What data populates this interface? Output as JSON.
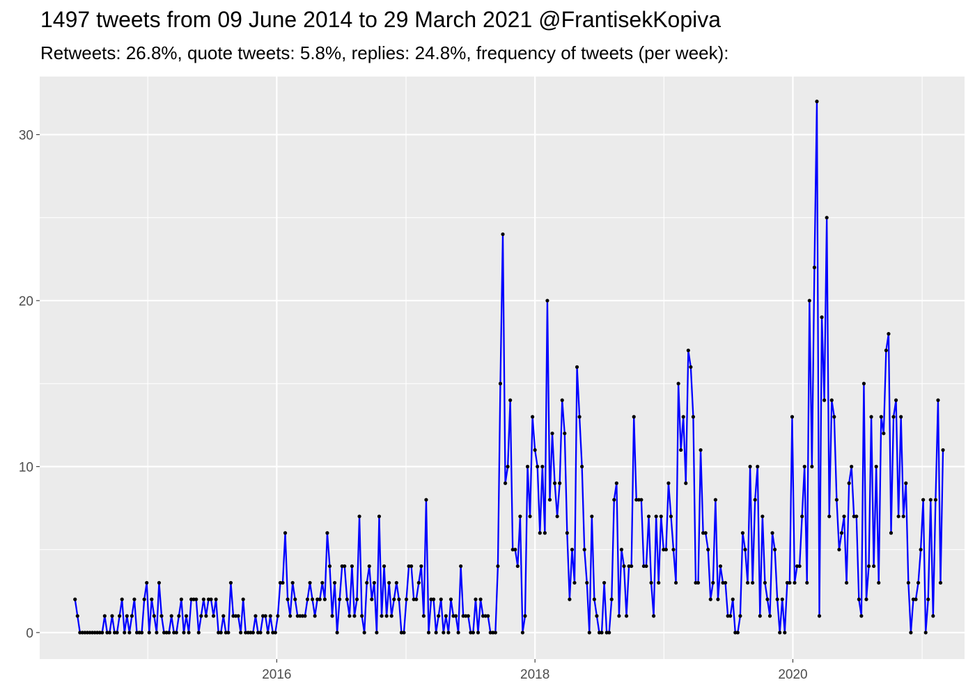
{
  "chart_data": {
    "type": "line",
    "title": "1497 tweets from 09 June 2014 to 29 March 2021 @FrantisekKopiva",
    "subtitle": "Retweets: 26.8%, quote tweets: 5.8%, replies: 24.8%, frequency of tweets (per week):",
    "xlabel": "",
    "ylabel": "",
    "x_ticks": [
      "2016",
      "2018",
      "2020"
    ],
    "y_ticks": [
      0,
      10,
      20,
      30
    ],
    "ylim": [
      -1.6,
      33.5
    ],
    "xlim": [
      "2014-03-01",
      "2021-05-01"
    ],
    "grid": true,
    "series": [
      {
        "color": "#0000ff",
        "point_color": "#000000",
        "x_start": "2014-06-09",
        "x_step_days": 7,
        "values": [
          2,
          1,
          0,
          0,
          0,
          0,
          0,
          0,
          0,
          0,
          0,
          0,
          1,
          0,
          0,
          1,
          0,
          0,
          1,
          2,
          0,
          1,
          0,
          1,
          2,
          0,
          0,
          0,
          2,
          3,
          0,
          2,
          1,
          0,
          3,
          1,
          0,
          0,
          0,
          1,
          0,
          0,
          1,
          2,
          0,
          1,
          0,
          2,
          2,
          2,
          0,
          1,
          2,
          1,
          2,
          2,
          1,
          2,
          0,
          0,
          1,
          0,
          0,
          3,
          1,
          1,
          1,
          0,
          2,
          0,
          0,
          0,
          0,
          1,
          0,
          0,
          1,
          1,
          0,
          1,
          0,
          0,
          1,
          3,
          3,
          6,
          2,
          1,
          3,
          2,
          1,
          1,
          1,
          1,
          2,
          3,
          2,
          1,
          2,
          2,
          3,
          2,
          6,
          4,
          1,
          3,
          0,
          2,
          4,
          4,
          2,
          1,
          4,
          1,
          2,
          7,
          1,
          0,
          3,
          4,
          2,
          3,
          0,
          7,
          1,
          4,
          1,
          3,
          1,
          2,
          3,
          2,
          0,
          0,
          2,
          4,
          4,
          2,
          2,
          3,
          4,
          1,
          8,
          0,
          2,
          2,
          0,
          1,
          2,
          0,
          1,
          0,
          2,
          1,
          1,
          0,
          4,
          1,
          1,
          1,
          0,
          0,
          2,
          0,
          2,
          1,
          1,
          1,
          0,
          0,
          0,
          4,
          15,
          24,
          9,
          10,
          14,
          5,
          5,
          4,
          7,
          0,
          1,
          10,
          7,
          13,
          11,
          10,
          6,
          10,
          6,
          20,
          8,
          12,
          9,
          7,
          9,
          14,
          12,
          6,
          2,
          5,
          3,
          16,
          13,
          10,
          5,
          3,
          0,
          7,
          2,
          1,
          0,
          0,
          3,
          0,
          0,
          2,
          8,
          9,
          1,
          5,
          4,
          1,
          4,
          4,
          13,
          8,
          8,
          8,
          4,
          4,
          7,
          3,
          1,
          7,
          3,
          7,
          5,
          5,
          9,
          7,
          5,
          3,
          15,
          11,
          13,
          9,
          17,
          16,
          13,
          3,
          3,
          11,
          6,
          6,
          5,
          2,
          3,
          8,
          2,
          4,
          3,
          3,
          1,
          1,
          2,
          0,
          0,
          1,
          6,
          5,
          3,
          10,
          3,
          8,
          10,
          1,
          7,
          3,
          2,
          1,
          6,
          5,
          2,
          0,
          2,
          0,
          3,
          3,
          13,
          3,
          4,
          4,
          7,
          10,
          3,
          20,
          10,
          22,
          32,
          1,
          19,
          14,
          25,
          7,
          14,
          13,
          8,
          5,
          6,
          7,
          3,
          9,
          10,
          7,
          7,
          2,
          1,
          15,
          2,
          4,
          13,
          4,
          10,
          3,
          13,
          12,
          17,
          18,
          6,
          13,
          14,
          7,
          13,
          7,
          9,
          3,
          0,
          2,
          2,
          3,
          5,
          8,
          0,
          2,
          8,
          1,
          8,
          14,
          3,
          11
        ]
      }
    ]
  }
}
